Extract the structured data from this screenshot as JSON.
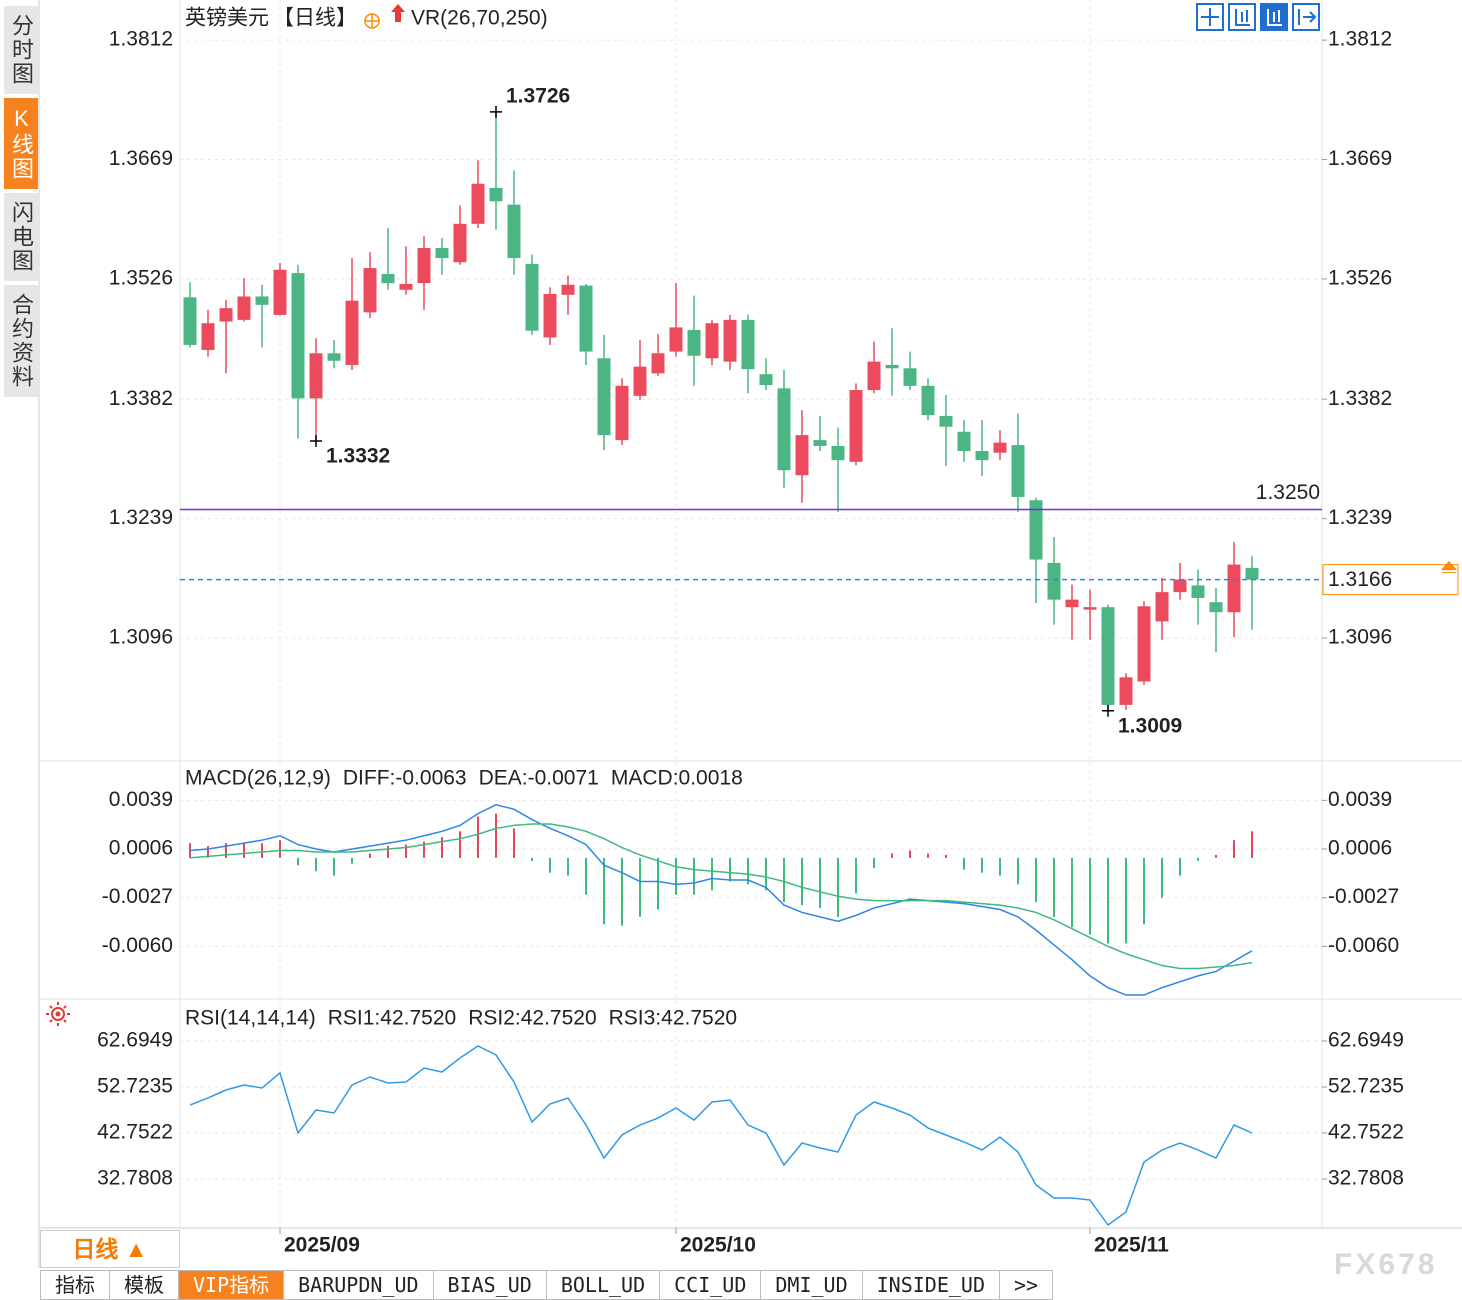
{
  "sidebar": [
    "分时图",
    "K线图",
    "闪电图",
    "合约资料"
  ],
  "sidebar_active": 1,
  "period_button": "日线 ▲",
  "tabs": [
    "指标",
    "模板",
    "VIP指标",
    "BARUPDN_UD",
    "BIAS_UD",
    "BOLL_UD",
    "CCI_UD",
    "DMI_UD",
    "INSIDE_UD",
    ">>"
  ],
  "tabs_active": 2,
  "watermark": "FX678",
  "chart_data": [
    {
      "type": "candlestick",
      "title": "英镑美元",
      "period": "【日线】",
      "indicator": "VR(26,70,250)",
      "categories": [
        null,
        null,
        null,
        null,
        null,
        "2025/09",
        null,
        null,
        null,
        null,
        null,
        null,
        null,
        null,
        null,
        null,
        null,
        null,
        null,
        null,
        null,
        null,
        null,
        null,
        null,
        null,
        null,
        "2025/10",
        null,
        null,
        null,
        null,
        null,
        null,
        null,
        null,
        null,
        null,
        null,
        null,
        null,
        null,
        null,
        null,
        null,
        null,
        null,
        null,
        null,
        null,
        "2025/11",
        null,
        null,
        null,
        null,
        null,
        null,
        null,
        null,
        null
      ],
      "open": [
        1.3504,
        1.3441,
        1.3475,
        1.3477,
        1.3505,
        1.3483,
        1.3533,
        1.3383,
        1.3437,
        1.3423,
        1.3486,
        1.3532,
        1.3513,
        1.3521,
        1.3563,
        1.3546,
        1.3592,
        1.3635,
        1.3615,
        1.3544,
        1.3456,
        1.3507,
        1.3518,
        1.3431,
        1.3333,
        1.3386,
        1.3413,
        1.3439,
        1.3465,
        1.3431,
        1.3427,
        1.3477,
        1.3412,
        1.3395,
        1.3291,
        1.3333,
        1.3326,
        1.3307,
        1.3393,
        1.3423,
        1.3419,
        1.3398,
        1.3362,
        1.3343,
        1.332,
        1.3318,
        1.3327,
        1.3261,
        1.3186,
        1.3133,
        1.313,
        1.3133,
        1.3016,
        1.3044,
        1.3116,
        1.3151,
        1.3159,
        1.3139,
        1.3127,
        1.318
      ],
      "high": [
        1.3522,
        1.3489,
        1.3501,
        1.3527,
        1.3519,
        1.3545,
        1.3543,
        1.3455,
        1.3453,
        1.3551,
        1.3558,
        1.3587,
        1.3565,
        1.3577,
        1.3575,
        1.3614,
        1.3668,
        1.3726,
        1.3656,
        1.3555,
        1.3516,
        1.353,
        1.352,
        1.3459,
        1.3407,
        1.3453,
        1.346,
        1.3521,
        1.3506,
        1.3477,
        1.3483,
        1.3483,
        1.3431,
        1.3417,
        1.3369,
        1.3362,
        1.3348,
        1.3401,
        1.3451,
        1.3467,
        1.3439,
        1.3407,
        1.3387,
        1.3357,
        1.3357,
        1.3345,
        1.3365,
        1.3264,
        1.3217,
        1.316,
        1.3154,
        1.3136,
        1.3054,
        1.314,
        1.3168,
        1.3186,
        1.3178,
        1.3156,
        1.3211,
        1.3194
      ],
      "low": [
        1.3444,
        1.3433,
        1.3413,
        1.3475,
        1.3444,
        1.3482,
        1.3335,
        1.3332,
        1.3419,
        1.3417,
        1.3479,
        1.3513,
        1.3507,
        1.3489,
        1.3531,
        1.3543,
        1.3587,
        1.3585,
        1.3531,
        1.3459,
        1.3447,
        1.3483,
        1.3423,
        1.3321,
        1.3327,
        1.3381,
        1.341,
        1.3433,
        1.3398,
        1.3423,
        1.3417,
        1.3389,
        1.3393,
        1.3276,
        1.3258,
        1.332,
        1.3247,
        1.3303,
        1.3389,
        1.3386,
        1.3393,
        1.3357,
        1.3302,
        1.3307,
        1.329,
        1.3309,
        1.3247,
        1.3138,
        1.3112,
        1.3094,
        1.3094,
        1.3009,
        1.301,
        1.304,
        1.3094,
        1.3142,
        1.3112,
        1.3079,
        1.3097,
        1.3106
      ],
      "close": [
        1.3447,
        1.3473,
        1.3491,
        1.3505,
        1.3495,
        1.3537,
        1.3383,
        1.3437,
        1.3428,
        1.35,
        1.3539,
        1.3521,
        1.352,
        1.3563,
        1.3551,
        1.3592,
        1.364,
        1.3619,
        1.3551,
        1.3464,
        1.3508,
        1.3519,
        1.3439,
        1.3339,
        1.3398,
        1.3421,
        1.3437,
        1.3468,
        1.3434,
        1.3473,
        1.3477,
        1.3418,
        1.3399,
        1.3297,
        1.3339,
        1.3326,
        1.3309,
        1.3393,
        1.3427,
        1.3419,
        1.3398,
        1.3363,
        1.3349,
        1.332,
        1.3309,
        1.333,
        1.3265,
        1.319,
        1.3142,
        1.3142,
        1.3133,
        1.3016,
        1.3049,
        1.3134,
        1.3151,
        1.3166,
        1.3144,
        1.3127,
        1.3184,
        1.3166
      ],
      "up_color": "#eb4b5d",
      "down_color": "#4cb584",
      "ylim": [
        1.295,
        1.386
      ],
      "yticks": [
        1.3812,
        1.3669,
        1.3526,
        1.3382,
        1.3239,
        1.3096
      ],
      "grid": true,
      "high_mark": 1.3726,
      "low_marks": [
        1.3332,
        1.3009
      ],
      "hline": {
        "value": 1.325,
        "label": "1.3250"
      },
      "hline_color": "#7b2be0",
      "last_price": 1.3166
    },
    {
      "type": "macd",
      "title": "MACD(26,12,9)",
      "series": [
        {
          "name": "DIFF:-0.0063",
          "color": "#2f86e8",
          "values": [
            0.0005,
            0.0006,
            0.0008,
            0.001,
            0.0012,
            0.0015,
            0.0009,
            0.0006,
            0.0004,
            0.0006,
            0.0008,
            0.001,
            0.0012,
            0.0015,
            0.0018,
            0.0022,
            0.003,
            0.0036,
            0.0033,
            0.0026,
            0.002,
            0.0015,
            0.0009,
            -0.0005,
            -0.001,
            -0.0016,
            -0.0016,
            -0.0018,
            -0.0017,
            -0.0014,
            -0.0015,
            -0.0015,
            -0.002,
            -0.0032,
            -0.0037,
            -0.004,
            -0.0043,
            -0.0039,
            -0.0034,
            -0.0031,
            -0.0028,
            -0.0029,
            -0.003,
            -0.0031,
            -0.0033,
            -0.0035,
            -0.004,
            -0.0049,
            -0.0059,
            -0.0069,
            -0.008,
            -0.0088,
            -0.0093,
            -0.0093,
            -0.0088,
            -0.0084,
            -0.008,
            -0.0077,
            -0.007,
            -0.0063
          ]
        },
        {
          "name": "DEA:-0.0071",
          "color": "#3dbb7c",
          "values": [
            0,
            0.0001,
            0.0002,
            0.0003,
            0.0004,
            0.0005,
            0.0005,
            0.0004,
            0.0004,
            0.0004,
            0.0005,
            0.0006,
            0.0007,
            0.0009,
            0.0011,
            0.0013,
            0.0016,
            0.002,
            0.0022,
            0.0023,
            0.0023,
            0.0021,
            0.0018,
            0.0013,
            0.0007,
            0.0002,
            -0.0002,
            -0.0006,
            -0.0008,
            -0.0009,
            -0.001,
            -0.0011,
            -0.0013,
            -0.0016,
            -0.002,
            -0.0023,
            -0.0026,
            -0.0028,
            -0.0029,
            -0.0029,
            -0.0029,
            -0.0029,
            -0.0029,
            -0.003,
            -0.0031,
            -0.0032,
            -0.0034,
            -0.0037,
            -0.0042,
            -0.0048,
            -0.0054,
            -0.006,
            -0.0065,
            -0.0069,
            -0.0073,
            -0.0075,
            -0.0075,
            -0.0074,
            -0.0073,
            -0.0071
          ]
        }
      ],
      "histogram": {
        "name": "MACD:0.0018",
        "color": "#3fb6ea",
        "up_color": "#e5465a",
        "down_color": "#3dbb7c",
        "values": [
          0.001,
          0.0008,
          0.001,
          0.001,
          0.001,
          0.0012,
          -0.0005,
          -0.0009,
          -0.0012,
          -0.0004,
          0.0003,
          0.0008,
          0.0009,
          0.0011,
          0.0014,
          0.0018,
          0.0028,
          0.003,
          0.002,
          -0.0002,
          -0.001,
          -0.0012,
          -0.0025,
          -0.0045,
          -0.0046,
          -0.004,
          -0.0035,
          -0.0025,
          -0.0025,
          -0.0022,
          -0.0016,
          -0.0018,
          -0.0022,
          -0.003,
          -0.0032,
          -0.0034,
          -0.004,
          -0.0024,
          -0.0007,
          0.0003,
          0.0005,
          0.0003,
          0.0002,
          -0.0008,
          -0.001,
          -0.0012,
          -0.0018,
          -0.003,
          -0.004,
          -0.0047,
          -0.0052,
          -0.0058,
          -0.0058,
          -0.0045,
          -0.0027,
          -0.0012,
          -0.0002,
          0.0002,
          0.0012,
          0.0018
        ]
      },
      "ylim": [
        -0.0095,
        0.0065
      ],
      "yticks": [
        0.0039,
        0.0006,
        -0.0027,
        {
          "value": -0.006,
          "label": "-0.0060"
        }
      ],
      "grid": true
    },
    {
      "type": "line",
      "title": "RSI(14,14,14)",
      "legend": [
        "RSI1:42.7520",
        "RSI2:42.7520",
        "RSI3:42.7520"
      ],
      "legend_colors": [
        "#3fa2f0",
        "#46c28a",
        "#3fb6ea"
      ],
      "color": "#2f9be8",
      "values": [
        48.82,
        50.34,
        52.07,
        53.16,
        52.51,
        55.76,
        42.75,
        47.74,
        47.09,
        53.16,
        54.89,
        53.59,
        53.81,
        56.84,
        55.97,
        59.01,
        61.61,
        59.66,
        53.81,
        45.13,
        49.04,
        50.34,
        44.48,
        37.33,
        42.32,
        44.48,
        46,
        48.17,
        45.57,
        49.47,
        49.9,
        44.48,
        42.75,
        35.81,
        40.58,
        39.5,
        38.63,
        46.65,
        49.47,
        48.17,
        46.65,
        43.83,
        42.32,
        40.8,
        39.07,
        41.88,
        38.63,
        31.48,
        28.66,
        28.66,
        28.22,
        22.81,
        25.62,
        36.46,
        39.07,
        40.58,
        39.07,
        37.33,
        44.48,
        42.752
      ],
      "ylim": [
        22.16,
        71.58
      ],
      "yticks": [
        62.6949,
        52.7235,
        42.7522,
        32.7808
      ],
      "grid": true
    }
  ]
}
